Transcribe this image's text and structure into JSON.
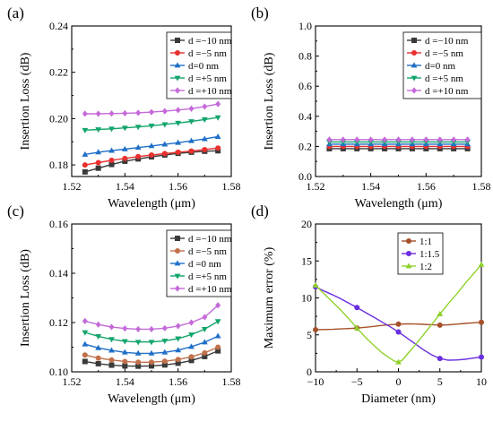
{
  "figure": {
    "panels": [
      "(a)",
      "(b)",
      "(c)",
      "(d)"
    ]
  },
  "chart_data": [
    {
      "panel": "(a)",
      "type": "line",
      "xlabel": "Wavelength (μm)",
      "ylabel": "Insertion Loss (dB)",
      "xlim": [
        1.52,
        1.58
      ],
      "ylim": [
        0.175,
        0.24
      ],
      "xticks": [
        1.52,
        1.54,
        1.56,
        1.58
      ],
      "yticks": [
        0.18,
        0.2,
        0.22,
        0.24
      ],
      "ytick_labels": [
        "0.18",
        "0.20",
        "0.22",
        "0.24"
      ],
      "legend_position": "top-right",
      "x": [
        1.525,
        1.53,
        1.535,
        1.54,
        1.545,
        1.55,
        1.555,
        1.56,
        1.565,
        1.57,
        1.575
      ],
      "series": [
        {
          "name": "d =−10 nm",
          "color": "#3a3a3a",
          "marker": "square",
          "values": [
            0.177,
            0.1786,
            0.1802,
            0.1816,
            0.1826,
            0.1835,
            0.1843,
            0.185,
            0.1855,
            0.1859,
            0.1861
          ]
        },
        {
          "name": "d =−5 nm",
          "color": "#e8312f",
          "marker": "circle",
          "values": [
            0.18,
            0.181,
            0.182,
            0.1828,
            0.1836,
            0.1843,
            0.1849,
            0.1855,
            0.186,
            0.1866,
            0.1873
          ]
        },
        {
          "name": "d=0 nm",
          "color": "#1f6fc8",
          "marker": "triangle-up",
          "values": [
            0.1845,
            0.1855,
            0.1862,
            0.1868,
            0.1875,
            0.1882,
            0.1889,
            0.1896,
            0.1904,
            0.1912,
            0.1922
          ]
        },
        {
          "name": "d =+5 nm",
          "color": "#12a56b",
          "marker": "triangle-down",
          "values": [
            0.195,
            0.1953,
            0.1956,
            0.196,
            0.1964,
            0.1969,
            0.1975,
            0.1981,
            0.1988,
            0.1996,
            0.2005
          ]
        },
        {
          "name": "d =+10 nm",
          "color": "#c46ad8",
          "marker": "diamond",
          "values": [
            0.2021,
            0.2021,
            0.2022,
            0.2023,
            0.2025,
            0.2028,
            0.2032,
            0.2037,
            0.2043,
            0.2052,
            0.2063
          ]
        }
      ]
    },
    {
      "panel": "(b)",
      "type": "line",
      "xlabel": "Wavelength (μm)",
      "ylabel": "Insertion Loss (dB)",
      "xlim": [
        1.52,
        1.58
      ],
      "ylim": [
        0,
        1.0
      ],
      "xticks": [
        1.52,
        1.54,
        1.56,
        1.58
      ],
      "yticks": [
        0,
        0.2,
        0.4,
        0.6,
        0.8,
        1.0
      ],
      "ytick_labels": [
        "0.0",
        "0.2",
        "0.4",
        "0.6",
        "0.8",
        "1.0"
      ],
      "legend_position": "top-right",
      "x": [
        1.525,
        1.53,
        1.535,
        1.54,
        1.545,
        1.55,
        1.555,
        1.56,
        1.565,
        1.57,
        1.575
      ],
      "series": [
        {
          "name": "d =−10 nm",
          "color": "#3a3a3a",
          "marker": "square",
          "values": [
            0.185,
            0.185,
            0.185,
            0.185,
            0.185,
            0.185,
            0.185,
            0.185,
            0.185,
            0.185,
            0.185
          ]
        },
        {
          "name": "d =−5 nm",
          "color": "#e8312f",
          "marker": "circle",
          "values": [
            0.2,
            0.2,
            0.2,
            0.2,
            0.2,
            0.2,
            0.2,
            0.2,
            0.2,
            0.2,
            0.2
          ]
        },
        {
          "name": "d=0 nm",
          "color": "#1f6fc8",
          "marker": "triangle-up",
          "values": [
            0.215,
            0.215,
            0.215,
            0.215,
            0.215,
            0.215,
            0.215,
            0.215,
            0.215,
            0.215,
            0.215
          ]
        },
        {
          "name": "d =+5 nm",
          "color": "#12a56b",
          "marker": "triangle-down",
          "values": [
            0.23,
            0.23,
            0.23,
            0.23,
            0.23,
            0.23,
            0.23,
            0.23,
            0.23,
            0.23,
            0.23
          ]
        },
        {
          "name": "d =+10 nm",
          "color": "#c46ad8",
          "marker": "diamond",
          "values": [
            0.245,
            0.245,
            0.245,
            0.245,
            0.245,
            0.245,
            0.245,
            0.245,
            0.245,
            0.245,
            0.245
          ]
        }
      ]
    },
    {
      "panel": "(c)",
      "type": "line",
      "xlabel": "Wavelength (μm)",
      "ylabel": "Insertion Loss (dB)",
      "xlim": [
        1.52,
        1.58
      ],
      "ylim": [
        0.1,
        0.16
      ],
      "xticks": [
        1.52,
        1.54,
        1.56,
        1.58
      ],
      "yticks": [
        0.1,
        0.12,
        0.14,
        0.16
      ],
      "ytick_labels": [
        "0.10",
        "0.12",
        "0.14",
        "0.16"
      ],
      "legend_position": "top-right",
      "x": [
        1.525,
        1.53,
        1.535,
        1.54,
        1.545,
        1.55,
        1.555,
        1.56,
        1.565,
        1.57,
        1.575
      ],
      "series": [
        {
          "name": "d =−10 nm",
          "color": "#3a3a3a",
          "marker": "square",
          "values": [
            0.1042,
            0.1033,
            0.1027,
            0.1024,
            0.1023,
            0.1024,
            0.1028,
            0.1035,
            0.1046,
            0.1062,
            0.1085
          ]
        },
        {
          "name": "d =−5 nm",
          "color": "#c0704a",
          "marker": "circle",
          "values": [
            0.1068,
            0.1056,
            0.1048,
            0.1042,
            0.1039,
            0.1039,
            0.1043,
            0.105,
            0.1061,
            0.1077,
            0.11
          ]
        },
        {
          "name": "d =0 nm",
          "color": "#1f6fc8",
          "marker": "triangle-up",
          "values": [
            0.1112,
            0.1097,
            0.1087,
            0.1079,
            0.1075,
            0.1075,
            0.1079,
            0.1088,
            0.1102,
            0.112,
            0.1145
          ]
        },
        {
          "name": "d =+5 nm",
          "color": "#12a56b",
          "marker": "triangle-down",
          "values": [
            0.116,
            0.1144,
            0.1132,
            0.1124,
            0.1121,
            0.1121,
            0.1126,
            0.1135,
            0.1151,
            0.1173,
            0.1205
          ]
        },
        {
          "name": "d =+10 nm",
          "color": "#c46ad8",
          "marker": "diamond",
          "values": [
            0.1206,
            0.1192,
            0.1182,
            0.1176,
            0.1173,
            0.1173,
            0.1177,
            0.1186,
            0.12,
            0.1222,
            0.127
          ]
        }
      ]
    },
    {
      "panel": "(d)",
      "type": "line",
      "xlabel": "Diameter (nm)",
      "ylabel": "Maximum error (%)",
      "xlim": [
        -10,
        10
      ],
      "ylim": [
        0,
        20
      ],
      "xticks": [
        -10,
        -5,
        0,
        5,
        10
      ],
      "yticks": [
        0,
        5,
        10,
        15,
        20
      ],
      "ytick_labels": [
        "0",
        "5",
        "10",
        "15",
        "20"
      ],
      "legend_position": "top-left",
      "series": [
        {
          "name": "1:1",
          "color": "#a5502a",
          "marker": "circle",
          "x": [
            -10,
            -9,
            -8,
            -7,
            -6,
            -5,
            -4,
            -3,
            -2,
            -1,
            0,
            1,
            2,
            3,
            4,
            5,
            6,
            7,
            8,
            9,
            10
          ],
          "values": [
            5.7,
            5.72,
            5.75,
            5.8,
            5.86,
            5.92,
            6.02,
            6.15,
            6.28,
            6.38,
            6.45,
            6.48,
            6.47,
            6.43,
            6.38,
            6.32,
            6.36,
            6.45,
            6.55,
            6.63,
            6.7
          ]
        },
        {
          "name": "1:1.5",
          "color": "#6a2de0",
          "marker": "circle",
          "x": [
            -10,
            -9,
            -8,
            -7,
            -6,
            -5,
            -4,
            -3,
            -2,
            -1,
            0,
            1,
            2,
            3,
            4,
            5,
            6,
            7,
            8,
            9,
            10
          ],
          "values": [
            11.5,
            10.95,
            10.45,
            9.9,
            9.3,
            8.7,
            8.05,
            7.4,
            6.75,
            6.1,
            5.4,
            4.6,
            3.8,
            3.0,
            2.3,
            1.8,
            1.58,
            1.6,
            1.7,
            1.85,
            2.0
          ]
        },
        {
          "name": "1:2",
          "color": "#8fd12a",
          "marker": "triangle-up",
          "x": [
            -10,
            -9,
            -8,
            -7,
            -6,
            -5,
            -4,
            -3,
            -2,
            -1,
            -0.5,
            0,
            0.5,
            1,
            2,
            3,
            4,
            5,
            6,
            7,
            8,
            9,
            10
          ],
          "values": [
            11.7,
            10.6,
            9.5,
            8.4,
            7.2,
            5.9,
            4.7,
            3.6,
            2.6,
            1.8,
            1.45,
            1.3,
            1.6,
            2.3,
            3.6,
            5.0,
            6.4,
            7.8,
            9.2,
            10.5,
            11.9,
            13.2,
            14.5
          ]
        }
      ],
      "marker_x": [
        -10,
        -5,
        0,
        5,
        10
      ]
    }
  ]
}
